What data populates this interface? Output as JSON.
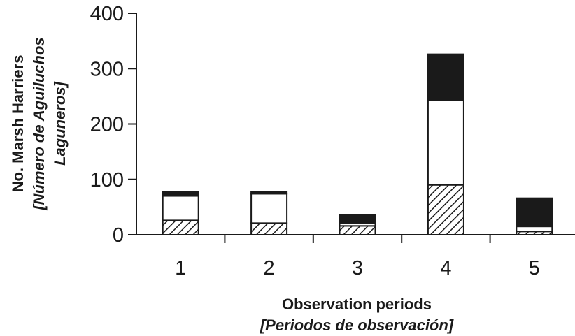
{
  "chart_data": {
    "type": "bar",
    "stacked": true,
    "categories": [
      "1",
      "2",
      "3",
      "4",
      "5"
    ],
    "series": [
      {
        "values": [
          26,
          21,
          16,
          90,
          6
        ],
        "color": "hatched"
      },
      {
        "values": [
          44,
          53,
          5,
          153,
          9
        ],
        "color": "#ffffff"
      },
      {
        "values": [
          7,
          3,
          15,
          83,
          51
        ],
        "color": "#1a1a1a"
      }
    ],
    "ylim": [
      0,
      400
    ],
    "yticks": [
      "0",
      "100",
      "200",
      "300",
      "400"
    ],
    "ylabel": {
      "line1": "No. Marsh Harriers",
      "line2": "[Número de Aguiluchos",
      "line3": "Laguneros]"
    },
    "xlabel": {
      "line1": "Observation periods",
      "line2": "[Periodos de observación]"
    },
    "grid": false,
    "legend": "none"
  }
}
